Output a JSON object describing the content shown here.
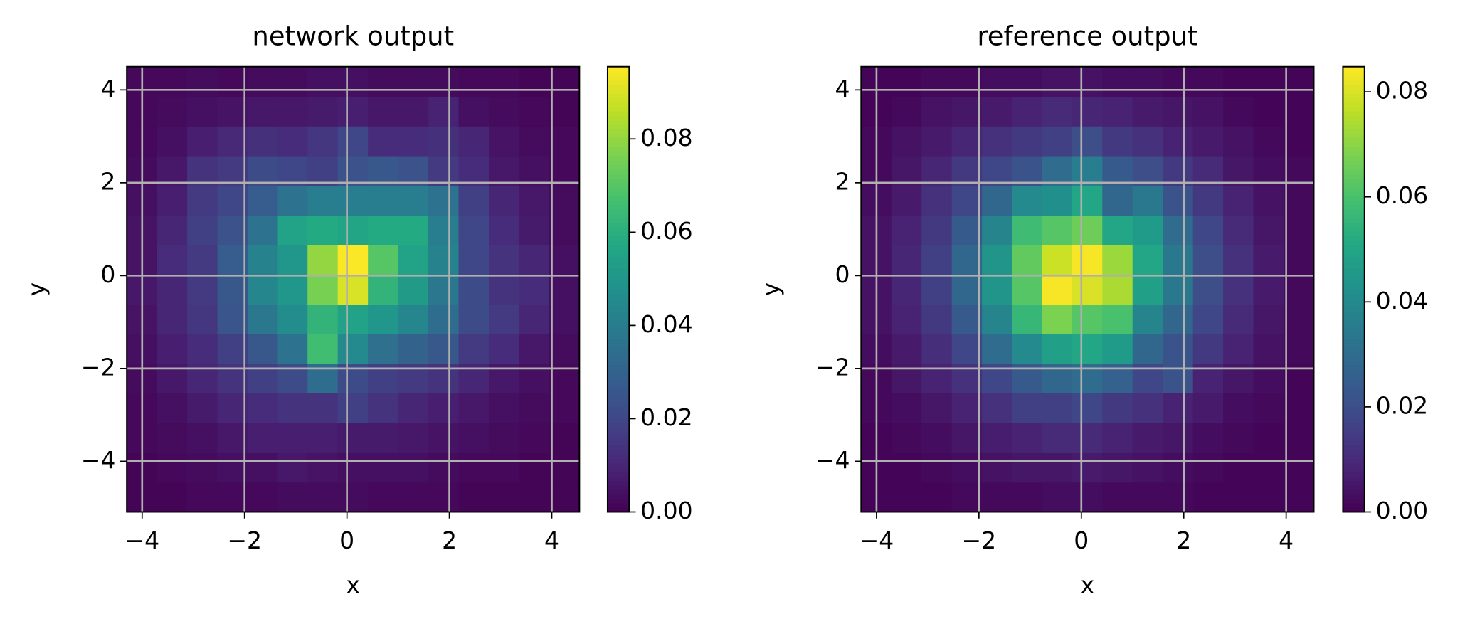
{
  "chart_data": [
    {
      "type": "heatmap",
      "title": "network output",
      "x_label": "x",
      "y_label": "y",
      "colormap": "viridis",
      "grid": true,
      "xlim": [
        -4.3,
        4.54
      ],
      "ylim": [
        -5.09,
        4.5
      ],
      "xbins": [
        -4.3,
        -3.71,
        -3.12,
        -2.53,
        -1.94,
        -1.35,
        -0.77,
        -0.18,
        0.41,
        1.0,
        1.59,
        2.18,
        2.77,
        3.36,
        3.95,
        4.54
      ],
      "ybins": [
        -5.09,
        -4.45,
        -3.81,
        -3.17,
        -2.53,
        -1.89,
        -1.25,
        -0.62,
        0.02,
        0.66,
        1.3,
        1.94,
        2.58,
        3.22,
        3.86,
        4.5
      ],
      "xticks": [
        {
          "value": -4,
          "label": "−4"
        },
        {
          "value": -2,
          "label": "−2"
        },
        0,
        2,
        4
      ],
      "yticks": [
        {
          "value": -4,
          "label": "−4"
        },
        {
          "value": -2,
          "label": "−2"
        },
        0,
        2,
        4
      ],
      "clim": [
        0,
        0.0955
      ],
      "colorbar_ticks": [
        {
          "value": 0,
          "label": "0.00"
        },
        0.02,
        0.04,
        0.06,
        0.08
      ],
      "z": [
        [
          0.001,
          0.001,
          0.002,
          0.002,
          0.002,
          0.003,
          0.003,
          0.003,
          0.002,
          0.002,
          0.002,
          0.001,
          0.001,
          0.001,
          0.001
        ],
        [
          0.001,
          0.002,
          0.003,
          0.004,
          0.004,
          0.006,
          0.005,
          0.004,
          0.004,
          0.004,
          0.003,
          0.002,
          0.002,
          0.001,
          0.001
        ],
        [
          0.002,
          0.003,
          0.004,
          0.006,
          0.008,
          0.008,
          0.008,
          0.007,
          0.007,
          0.006,
          0.005,
          0.004,
          0.003,
          0.002,
          0.001
        ],
        [
          0.002,
          0.004,
          0.007,
          0.01,
          0.012,
          0.014,
          0.014,
          0.018,
          0.014,
          0.01,
          0.008,
          0.006,
          0.004,
          0.003,
          0.002
        ],
        [
          0.003,
          0.006,
          0.01,
          0.014,
          0.018,
          0.022,
          0.034,
          0.022,
          0.018,
          0.016,
          0.014,
          0.01,
          0.006,
          0.004,
          0.002
        ],
        [
          0.004,
          0.008,
          0.012,
          0.018,
          0.026,
          0.036,
          0.066,
          0.045,
          0.035,
          0.03,
          0.026,
          0.016,
          0.012,
          0.006,
          0.003
        ],
        [
          0.005,
          0.01,
          0.015,
          0.025,
          0.038,
          0.046,
          0.062,
          0.055,
          0.05,
          0.044,
          0.034,
          0.022,
          0.016,
          0.01,
          0.004
        ],
        [
          0.006,
          0.01,
          0.016,
          0.026,
          0.044,
          0.05,
          0.076,
          0.09,
          0.062,
          0.052,
          0.038,
          0.022,
          0.014,
          0.012,
          0.004
        ],
        [
          0.005,
          0.012,
          0.016,
          0.028,
          0.042,
          0.05,
          0.08,
          0.095,
          0.07,
          0.055,
          0.042,
          0.02,
          0.014,
          0.01,
          0.004
        ],
        [
          0.005,
          0.01,
          0.018,
          0.024,
          0.036,
          0.055,
          0.058,
          0.056,
          0.058,
          0.058,
          0.04,
          0.02,
          0.012,
          0.007,
          0.003
        ],
        [
          0.004,
          0.008,
          0.016,
          0.02,
          0.028,
          0.036,
          0.04,
          0.04,
          0.04,
          0.04,
          0.036,
          0.018,
          0.01,
          0.006,
          0.003
        ],
        [
          0.003,
          0.006,
          0.014,
          0.016,
          0.022,
          0.02,
          0.018,
          0.024,
          0.026,
          0.024,
          0.016,
          0.012,
          0.006,
          0.004,
          0.002
        ],
        [
          0.002,
          0.004,
          0.008,
          0.011,
          0.013,
          0.012,
          0.015,
          0.02,
          0.012,
          0.012,
          0.013,
          0.01,
          0.005,
          0.003,
          0.002
        ],
        [
          0.002,
          0.003,
          0.004,
          0.005,
          0.006,
          0.006,
          0.007,
          0.008,
          0.006,
          0.006,
          0.009,
          0.004,
          0.003,
          0.002,
          0.001
        ],
        [
          0.002,
          0.002,
          0.003,
          0.002,
          0.003,
          0.003,
          0.004,
          0.004,
          0.003,
          0.003,
          0.003,
          0.002,
          0.002,
          0.001,
          0.001
        ]
      ]
    },
    {
      "type": "heatmap",
      "title": "reference output",
      "x_label": "x",
      "y_label": "y",
      "colormap": "viridis",
      "grid": true,
      "xlim": [
        -4.3,
        4.54
      ],
      "ylim": [
        -5.09,
        4.5
      ],
      "xbins": [
        -4.3,
        -3.71,
        -3.12,
        -2.53,
        -1.94,
        -1.35,
        -0.77,
        -0.18,
        0.41,
        1.0,
        1.59,
        2.18,
        2.77,
        3.36,
        3.95,
        4.54
      ],
      "ybins": [
        -5.09,
        -4.45,
        -3.81,
        -3.17,
        -2.53,
        -1.89,
        -1.25,
        -0.62,
        0.02,
        0.66,
        1.3,
        1.94,
        2.58,
        3.22,
        3.86,
        4.5
      ],
      "xticks": [
        {
          "value": -4,
          "label": "−4"
        },
        {
          "value": -2,
          "label": "−2"
        },
        0,
        2,
        4
      ],
      "yticks": [
        {
          "value": -4,
          "label": "−4"
        },
        {
          "value": -2,
          "label": "−2"
        },
        0,
        2,
        4
      ],
      "clim": [
        0,
        0.0848
      ],
      "colorbar_ticks": [
        {
          "value": 0,
          "label": "0.00"
        },
        0.02,
        0.04,
        0.06,
        0.08
      ],
      "z": [
        [
          0.001,
          0.001,
          0.001,
          0.002,
          0.002,
          0.002,
          0.003,
          0.003,
          0.002,
          0.002,
          0.002,
          0.001,
          0.001,
          0.001,
          0.001
        ],
        [
          0.001,
          0.001,
          0.002,
          0.003,
          0.004,
          0.005,
          0.005,
          0.006,
          0.005,
          0.004,
          0.003,
          0.002,
          0.001,
          0.001,
          0.001
        ],
        [
          0.001,
          0.002,
          0.003,
          0.005,
          0.007,
          0.008,
          0.01,
          0.01,
          0.008,
          0.006,
          0.005,
          0.003,
          0.002,
          0.001,
          0.001
        ],
        [
          0.002,
          0.003,
          0.005,
          0.008,
          0.012,
          0.016,
          0.016,
          0.018,
          0.014,
          0.012,
          0.008,
          0.006,
          0.003,
          0.002,
          0.001
        ],
        [
          0.002,
          0.005,
          0.008,
          0.012,
          0.018,
          0.024,
          0.028,
          0.03,
          0.026,
          0.018,
          0.022,
          0.008,
          0.005,
          0.003,
          0.001
        ],
        [
          0.003,
          0.006,
          0.011,
          0.018,
          0.03,
          0.04,
          0.048,
          0.05,
          0.046,
          0.028,
          0.022,
          0.014,
          0.008,
          0.004,
          0.002
        ],
        [
          0.004,
          0.008,
          0.014,
          0.024,
          0.038,
          0.056,
          0.068,
          0.062,
          0.06,
          0.038,
          0.028,
          0.018,
          0.01,
          0.005,
          0.002
        ],
        [
          0.004,
          0.009,
          0.016,
          0.028,
          0.044,
          0.062,
          0.084,
          0.08,
          0.074,
          0.048,
          0.034,
          0.02,
          0.012,
          0.006,
          0.002
        ],
        [
          0.004,
          0.009,
          0.016,
          0.028,
          0.044,
          0.064,
          0.078,
          0.084,
          0.072,
          0.05,
          0.034,
          0.02,
          0.012,
          0.006,
          0.002
        ],
        [
          0.004,
          0.008,
          0.014,
          0.024,
          0.038,
          0.058,
          0.062,
          0.066,
          0.05,
          0.046,
          0.03,
          0.018,
          0.01,
          0.005,
          0.002
        ],
        [
          0.003,
          0.006,
          0.012,
          0.018,
          0.028,
          0.04,
          0.042,
          0.05,
          0.028,
          0.034,
          0.022,
          0.014,
          0.008,
          0.004,
          0.002
        ],
        [
          0.002,
          0.005,
          0.009,
          0.014,
          0.018,
          0.022,
          0.03,
          0.036,
          0.024,
          0.02,
          0.014,
          0.01,
          0.005,
          0.003,
          0.002
        ],
        [
          0.002,
          0.004,
          0.006,
          0.009,
          0.012,
          0.014,
          0.016,
          0.02,
          0.014,
          0.012,
          0.008,
          0.006,
          0.004,
          0.002,
          0.001
        ],
        [
          0.001,
          0.002,
          0.004,
          0.005,
          0.006,
          0.008,
          0.01,
          0.009,
          0.008,
          0.006,
          0.005,
          0.004,
          0.002,
          0.001,
          0.001
        ],
        [
          0.001,
          0.001,
          0.002,
          0.002,
          0.003,
          0.003,
          0.004,
          0.004,
          0.003,
          0.003,
          0.002,
          0.002,
          0.001,
          0.001,
          0.001
        ]
      ]
    }
  ]
}
